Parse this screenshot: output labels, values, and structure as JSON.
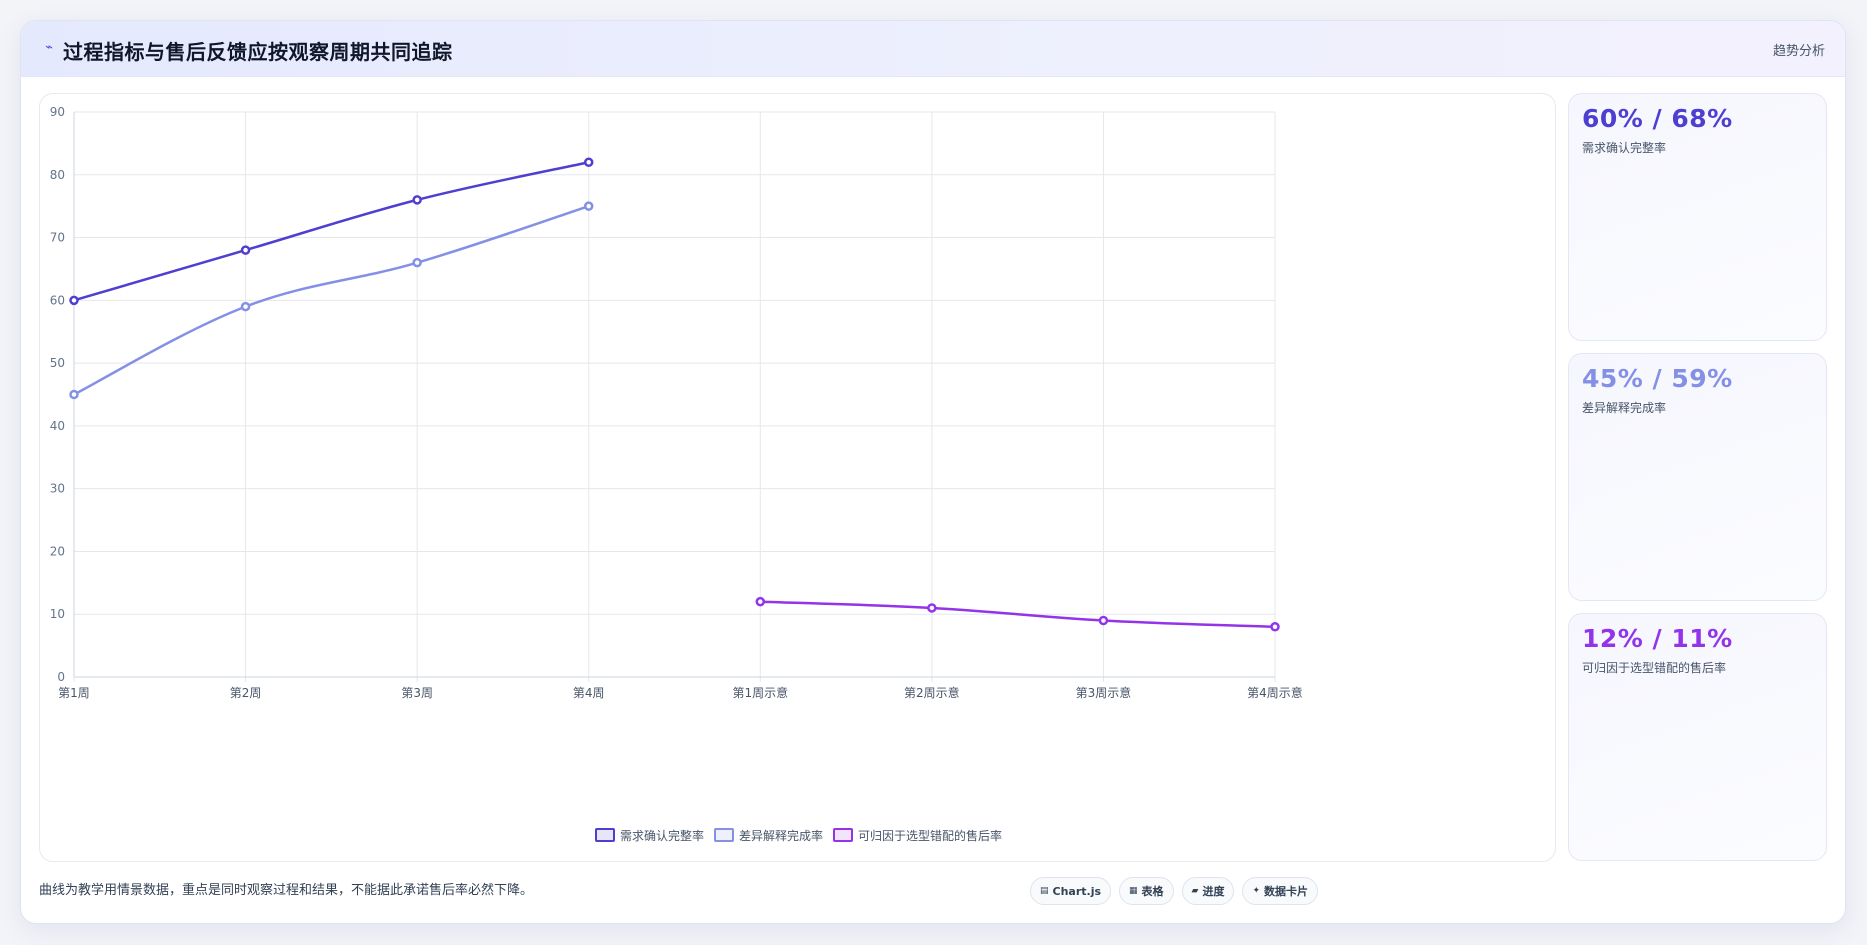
{
  "header": {
    "icon": "trend-line-icon",
    "title": "过程指标与售后反馈应按观察周期共同追踪",
    "badge": "趋势分析"
  },
  "colors": {
    "series1": "#4f3fd0",
    "series2": "#8490e6",
    "series3": "#9333ea",
    "grid": "#e5e7eb",
    "axis_text": "#64748b"
  },
  "chart_data": {
    "type": "line",
    "categories": [
      "第1周",
      "第2周",
      "第3周",
      "第4周",
      "第1周示意",
      "第2周示意",
      "第3周示意",
      "第4周示意"
    ],
    "ylim": [
      0,
      90
    ],
    "yticks": [
      0,
      10,
      20,
      30,
      40,
      50,
      60,
      70,
      80,
      90
    ],
    "grid": true,
    "legend_position": "bottom",
    "series": [
      {
        "name": "需求确认完整率",
        "color": "#4f3fd0",
        "values": [
          60,
          68,
          76,
          82,
          null,
          null,
          null,
          null
        ]
      },
      {
        "name": "差异解释完成率",
        "color": "#8490e6",
        "values": [
          45,
          59,
          66,
          75,
          null,
          null,
          null,
          null
        ]
      },
      {
        "name": "可归因于选型错配的售后率",
        "color": "#9333ea",
        "values": [
          null,
          null,
          null,
          null,
          12,
          11,
          9,
          8
        ]
      }
    ]
  },
  "stats": [
    {
      "value": "60% / 68%",
      "label": "需求确认完整率",
      "color": "#4f3fd0"
    },
    {
      "value": "45% / 59%",
      "label": "差异解释完成率",
      "color": "#8490e6"
    },
    {
      "value": "12% / 11%",
      "label": "可归因于选型错配的售后率",
      "color": "#9333ea"
    }
  ],
  "footnote": "曲线为教学用情景数据，重点是同时观察过程和结果，不能据此承诺售后率必然下降。",
  "pills": [
    {
      "icon": "chart-icon",
      "glyph": "▤",
      "label": "Chart.js"
    },
    {
      "icon": "table-icon",
      "glyph": "▦",
      "label": "表格"
    },
    {
      "icon": "progress-icon",
      "glyph": "▰",
      "label": "进度"
    },
    {
      "icon": "sparkle-icon",
      "glyph": "✦",
      "label": "数据卡片"
    }
  ]
}
